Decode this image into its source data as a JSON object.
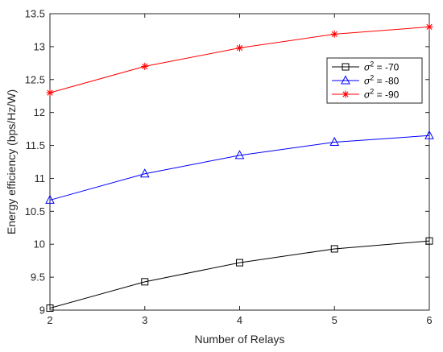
{
  "chart_data": {
    "type": "line",
    "title": "",
    "xlabel": "Number of Relays",
    "ylabel": "Energy efficiency (bps/Hz/W)",
    "x": [
      2,
      3,
      4,
      5,
      6
    ],
    "xlim": [
      2,
      6
    ],
    "ylim": [
      9,
      13.5
    ],
    "xticks": [
      "2",
      "3",
      "4",
      "5",
      "6"
    ],
    "yticks": [
      "9",
      "9.5",
      "10",
      "10.5",
      "11",
      "11.5",
      "12",
      "12.5",
      "13",
      "13.5"
    ],
    "grid": false,
    "legend_position": "upper-right",
    "series": [
      {
        "name": "σ² = -70",
        "name_base": "σ",
        "name_sup": "2",
        "name_rest": " = -70",
        "color": "#000000",
        "marker": "square",
        "values": [
          9.03,
          9.43,
          9.72,
          9.93,
          10.05
        ]
      },
      {
        "name": "σ² = -80",
        "name_base": "σ",
        "name_sup": "2",
        "name_rest": " = -80",
        "color": "#0000ff",
        "marker": "triangle",
        "values": [
          10.67,
          11.07,
          11.35,
          11.55,
          11.65
        ]
      },
      {
        "name": "σ² = -90",
        "name_base": "σ",
        "name_sup": "2",
        "name_rest": " = -90",
        "color": "#ff0000",
        "marker": "asterisk",
        "values": [
          12.3,
          12.7,
          12.98,
          13.19,
          13.3
        ]
      }
    ]
  }
}
